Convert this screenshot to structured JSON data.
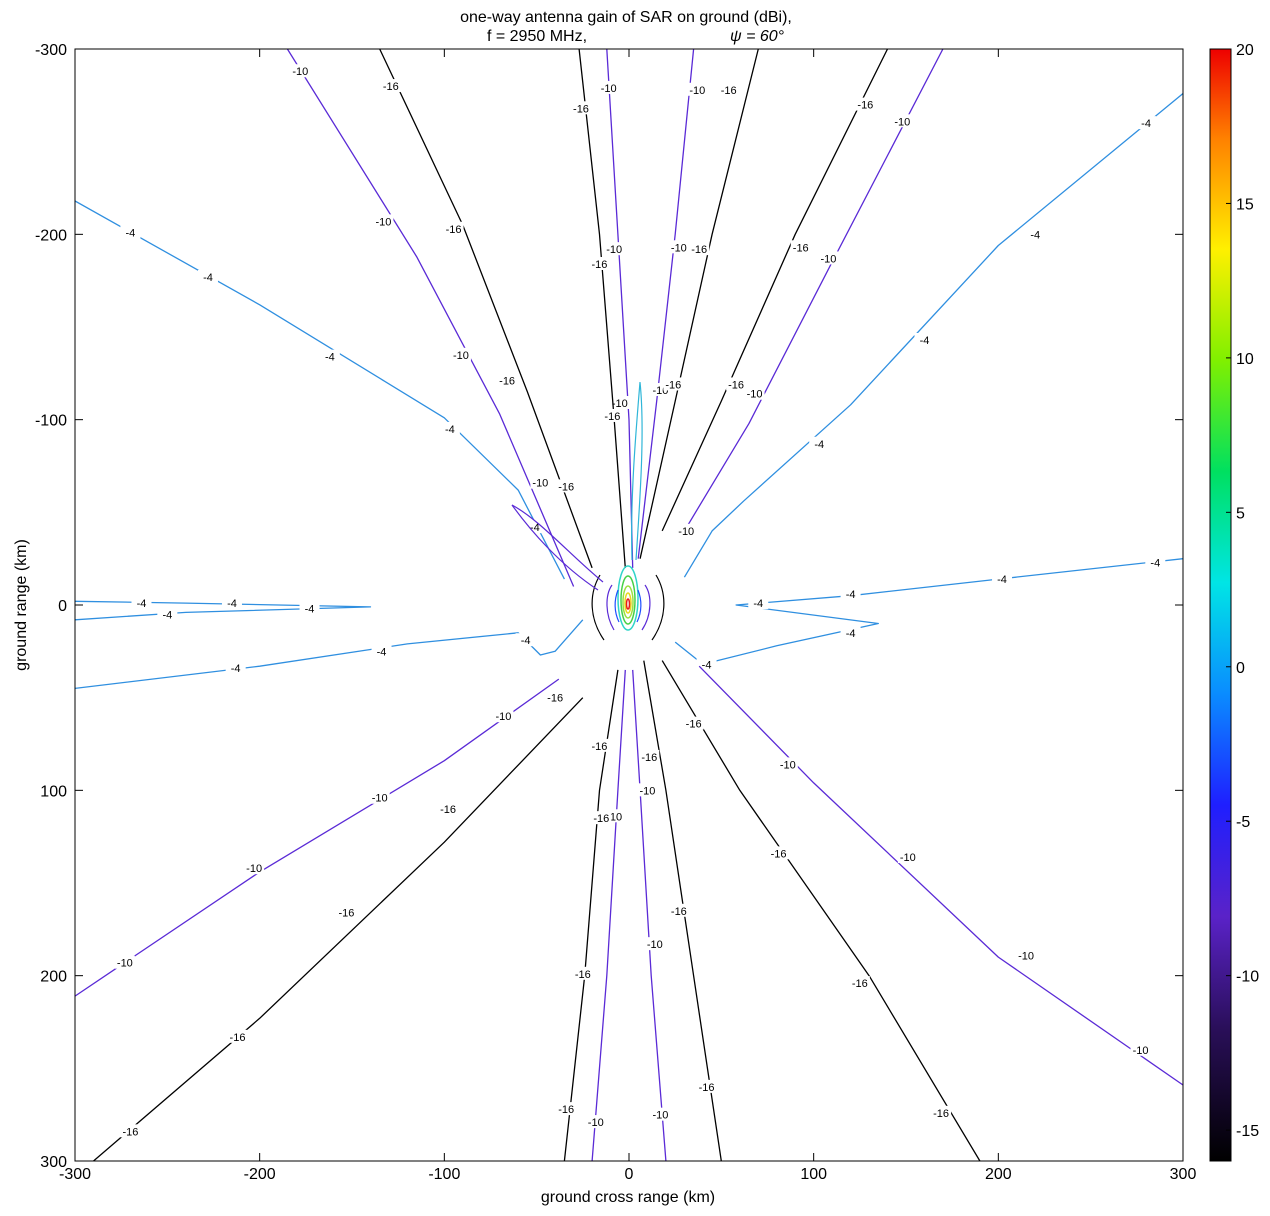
{
  "chart_data": {
    "type": "contour",
    "title_line1": "one-way antenna gain of SAR on ground (dBi),",
    "title_line2_left": "f = 2950 MHz,",
    "title_line2_right": "ψ = 60°",
    "xlabel": "ground cross range (km)",
    "ylabel": "ground range (km)",
    "xlim": [
      -300,
      300
    ],
    "ylim": [
      -300,
      300
    ],
    "y_axis_reversed": true,
    "x_ticks": [
      -300,
      -200,
      -100,
      0,
      100,
      200,
      300
    ],
    "y_ticks": [
      -300,
      -200,
      -100,
      0,
      100,
      200,
      300
    ],
    "colorbar": {
      "range": [
        -16,
        20
      ],
      "ticks": [
        20,
        15,
        10,
        5,
        0,
        -5,
        -10,
        -15
      ],
      "colormap": "jet-like"
    },
    "contour_levels": [
      -16,
      -10,
      -4
    ],
    "level_colors": {
      "-16": "#000000",
      "-10": "#5a2ad6",
      "-4": "#2f8fe0"
    },
    "contours": [
      {
        "level": -4,
        "points": [
          [
            -300,
            -218
          ],
          [
            -200,
            -162
          ],
          [
            -100,
            -101
          ],
          [
            -60,
            -62
          ],
          [
            -35,
            -14
          ]
        ],
        "labels": [
          [
            -270,
            -201
          ],
          [
            -228,
            -177
          ],
          [
            -162,
            -134
          ],
          [
            -97,
            -95
          ],
          [
            -51,
            -42
          ]
        ]
      },
      {
        "level": -4,
        "points": [
          [
            -300,
            8
          ],
          [
            -240,
            4
          ],
          [
            -140,
            1
          ],
          [
            -240,
            -1
          ],
          [
            -300,
            -2
          ]
        ],
        "labels": [
          [
            -250,
            5
          ],
          [
            -215,
            -1
          ],
          [
            -173,
            2
          ],
          [
            -264,
            -1
          ]
        ]
      },
      {
        "level": -4,
        "points": [
          [
            -300,
            45
          ],
          [
            -200,
            33
          ],
          [
            -120,
            21
          ],
          [
            -60,
            15
          ],
          [
            -48,
            27
          ],
          [
            -40,
            25
          ],
          [
            -25,
            8
          ]
        ],
        "labels": [
          [
            -213,
            34
          ],
          [
            -134,
            25
          ],
          [
            -56,
            19
          ]
        ]
      },
      {
        "level": -4,
        "points": [
          [
            300,
            -276
          ],
          [
            200,
            -194
          ],
          [
            120,
            -108
          ],
          [
            62,
            -56
          ],
          [
            45,
            -40
          ],
          [
            30,
            -15
          ]
        ],
        "labels": [
          [
            280,
            -260
          ],
          [
            220,
            -200
          ],
          [
            160,
            -143
          ],
          [
            103,
            -87
          ]
        ]
      },
      {
        "level": -4,
        "points": [
          [
            300,
            -25
          ],
          [
            200,
            -14
          ],
          [
            120,
            -5
          ],
          [
            58,
            0
          ],
          [
            135,
            10
          ],
          [
            80,
            22
          ],
          [
            40,
            32
          ],
          [
            25,
            20
          ]
        ],
        "labels": [
          [
            285,
            -23
          ],
          [
            202,
            -14
          ],
          [
            120,
            -6
          ],
          [
            70,
            -1
          ],
          [
            120,
            15
          ],
          [
            42,
            32
          ]
        ]
      },
      {
        "level": -10,
        "points": [
          [
            -185,
            -300
          ],
          [
            -115,
            -188
          ],
          [
            -70,
            -103
          ],
          [
            -30,
            -10
          ]
        ],
        "labels": [
          [
            -178,
            -288
          ],
          [
            -133,
            -207
          ],
          [
            -91,
            -135
          ],
          [
            -48,
            -66
          ]
        ]
      },
      {
        "level": -10,
        "points": [
          [
            -300,
            211
          ],
          [
            -200,
            144
          ],
          [
            -100,
            84
          ],
          [
            -38,
            40
          ]
        ],
        "labels": [
          [
            -273,
            193
          ],
          [
            -203,
            142
          ],
          [
            -135,
            104
          ],
          [
            -68,
            60
          ]
        ]
      },
      {
        "level": -10,
        "points": [
          [
            -12,
            -300
          ],
          [
            -6,
            -200
          ],
          [
            0,
            -100
          ],
          [
            2,
            -20
          ]
        ],
        "labels": [
          [
            -11,
            -279
          ],
          [
            -8,
            -192
          ],
          [
            -5,
            -109
          ]
        ]
      },
      {
        "level": -10,
        "points": [
          [
            -20,
            300
          ],
          [
            -12,
            200
          ],
          [
            -6,
            100
          ],
          [
            -2,
            35
          ]
        ],
        "labels": [
          [
            -18,
            279
          ],
          [
            -8,
            114
          ]
        ]
      },
      {
        "level": -10,
        "points": [
          [
            35,
            -300
          ],
          [
            25,
            -200
          ],
          [
            15,
            -110
          ],
          [
            5,
            -25
          ]
        ],
        "labels": [
          [
            37,
            -278
          ],
          [
            27,
            -193
          ],
          [
            17,
            -116
          ]
        ]
      },
      {
        "level": -10,
        "points": [
          [
            20,
            300
          ],
          [
            12,
            200
          ],
          [
            6,
            100
          ],
          [
            2,
            35
          ]
        ],
        "labels": [
          [
            17,
            275
          ],
          [
            14,
            183
          ],
          [
            10,
            100
          ]
        ]
      },
      {
        "level": -10,
        "points": [
          [
            170,
            -300
          ],
          [
            110,
            -185
          ],
          [
            65,
            -98
          ],
          [
            30,
            -40
          ]
        ],
        "labels": [
          [
            148,
            -261
          ],
          [
            108,
            -187
          ],
          [
            68,
            -114
          ],
          [
            31,
            -40
          ]
        ]
      },
      {
        "level": -10,
        "points": [
          [
            300,
            259
          ],
          [
            200,
            190
          ],
          [
            100,
            96
          ],
          [
            38,
            33
          ]
        ],
        "labels": [
          [
            277,
            240
          ],
          [
            215,
            189
          ],
          [
            151,
            136
          ],
          [
            86,
            86
          ]
        ]
      },
      {
        "level": -16,
        "points": [
          [
            -135,
            -300
          ],
          [
            -90,
            -205
          ],
          [
            -55,
            -115
          ],
          [
            -20,
            -20
          ]
        ],
        "labels": [
          [
            -129,
            -280
          ],
          [
            -95,
            -203
          ],
          [
            -66,
            -121
          ],
          [
            -34,
            -64
          ]
        ]
      },
      {
        "level": -16,
        "points": [
          [
            -290,
            300
          ],
          [
            -200,
            223
          ],
          [
            -100,
            128
          ],
          [
            -25,
            50
          ]
        ],
        "labels": [
          [
            -270,
            284
          ],
          [
            -212,
            233
          ],
          [
            -153,
            166
          ],
          [
            -98,
            110
          ],
          [
            -40,
            50
          ]
        ]
      },
      {
        "level": -16,
        "points": [
          [
            -27,
            -300
          ],
          [
            -16,
            -200
          ],
          [
            -8,
            -100
          ],
          [
            -2,
            -20
          ]
        ],
        "labels": [
          [
            -26,
            -268
          ],
          [
            -16,
            -184
          ],
          [
            -9,
            -102
          ]
        ]
      },
      {
        "level": -16,
        "points": [
          [
            -35,
            300
          ],
          [
            -24,
            200
          ],
          [
            -16,
            100
          ],
          [
            -6,
            35
          ]
        ],
        "labels": [
          [
            -34,
            272
          ],
          [
            -25,
            199
          ],
          [
            -15,
            115
          ],
          [
            -16,
            76
          ]
        ]
      },
      {
        "level": -16,
        "points": [
          [
            70,
            -300
          ],
          [
            45,
            -200
          ],
          [
            25,
            -110
          ],
          [
            6,
            -25
          ]
        ],
        "labels": [
          [
            54,
            -278
          ],
          [
            38,
            -192
          ],
          [
            24,
            -119
          ]
        ]
      },
      {
        "level": -16,
        "points": [
          [
            50,
            300
          ],
          [
            35,
            200
          ],
          [
            20,
            100
          ],
          [
            8,
            30
          ]
        ],
        "labels": [
          [
            42,
            260
          ],
          [
            27,
            165
          ],
          [
            11,
            82
          ]
        ]
      },
      {
        "level": -16,
        "points": [
          [
            140,
            -300
          ],
          [
            90,
            -200
          ],
          [
            50,
            -110
          ],
          [
            18,
            -40
          ]
        ],
        "labels": [
          [
            128,
            -270
          ],
          [
            93,
            -193
          ],
          [
            58,
            -119
          ]
        ]
      },
      {
        "level": -16,
        "points": [
          [
            190,
            300
          ],
          [
            130,
            200
          ],
          [
            60,
            100
          ],
          [
            18,
            30
          ]
        ],
        "labels": [
          [
            169,
            274
          ],
          [
            125,
            204
          ],
          [
            81,
            134
          ],
          [
            35,
            64
          ]
        ]
      }
    ],
    "center_peak": {
      "x": 0,
      "y": 0,
      "value": 20,
      "description": "main beam around origin"
    }
  }
}
